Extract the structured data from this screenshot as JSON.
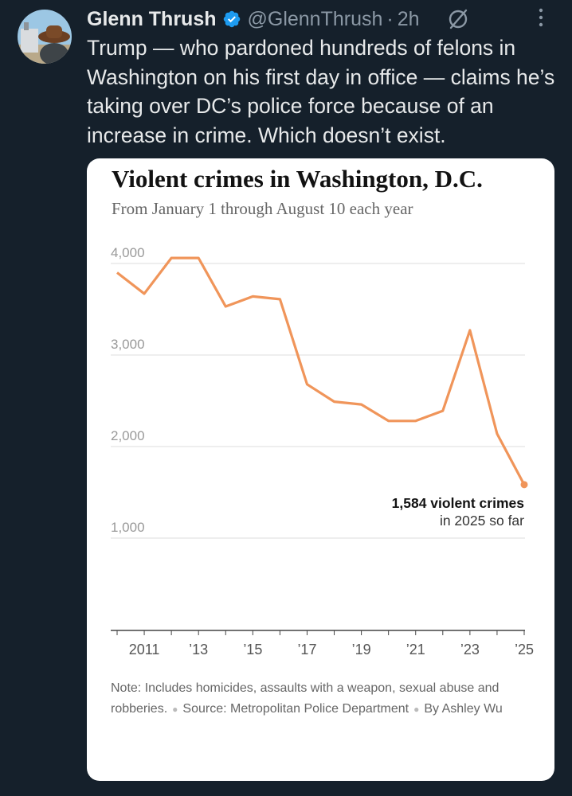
{
  "tweet": {
    "author_name": "Glenn Thrush",
    "handle": "@GlennThrush",
    "separator": "·",
    "time": "2h",
    "text": "Trump — who pardoned hundreds of felons in Washington on his first day in office — claims he’s taking over DC’s police force because of an increase in crime. Which doesn’t exist.",
    "icons": [
      "avatar",
      "verified-badge-icon",
      "grok-icon",
      "more-options-icon"
    ],
    "colors": {
      "background": "#15202b",
      "text": "#e7e9ea",
      "muted": "#8b98a5",
      "verified": "#1d9bf0"
    }
  },
  "chart_data": {
    "type": "line",
    "title": "Violent crimes in Washington, D.C.",
    "subtitle": "From January 1 through August 10 each year",
    "xlabel": "",
    "ylabel": "",
    "x": [
      2010,
      2011,
      2012,
      2013,
      2014,
      2015,
      2016,
      2017,
      2018,
      2019,
      2020,
      2021,
      2022,
      2023,
      2024,
      2025
    ],
    "series": [
      {
        "name": "",
        "values": [
          3900,
          3670,
          4060,
          4060,
          3530,
          3640,
          3610,
          2680,
          2490,
          2460,
          2280,
          2280,
          2390,
          3270,
          2140,
          1584
        ],
        "color": "#f0955a"
      }
    ],
    "xticks": [
      {
        "value": 2011,
        "label": "2011"
      },
      {
        "value": 2013,
        "label": "’13"
      },
      {
        "value": 2015,
        "label": "’15"
      },
      {
        "value": 2017,
        "label": "’17"
      },
      {
        "value": 2019,
        "label": "’19"
      },
      {
        "value": 2021,
        "label": "’21"
      },
      {
        "value": 2023,
        "label": "’23"
      },
      {
        "value": 2025,
        "label": "’25"
      }
    ],
    "yticks": [
      {
        "value": 4000,
        "label": "4,000"
      },
      {
        "value": 3000,
        "label": "3,000"
      },
      {
        "value": 2000,
        "label": "2,000"
      },
      {
        "value": 1000,
        "label": "1,000"
      }
    ],
    "ylim": [
      0,
      4000
    ],
    "grid": true,
    "annotation": {
      "bold": "1,584 violent crimes",
      "text": "in 2025 so far",
      "x": 2025,
      "y": 1584
    }
  },
  "note": {
    "text": "Note: Includes homicides, assaults with a weapon, sexual abuse and robberies.",
    "source": "Source: Metropolitan Police Department",
    "byline": "By Ashley Wu"
  }
}
